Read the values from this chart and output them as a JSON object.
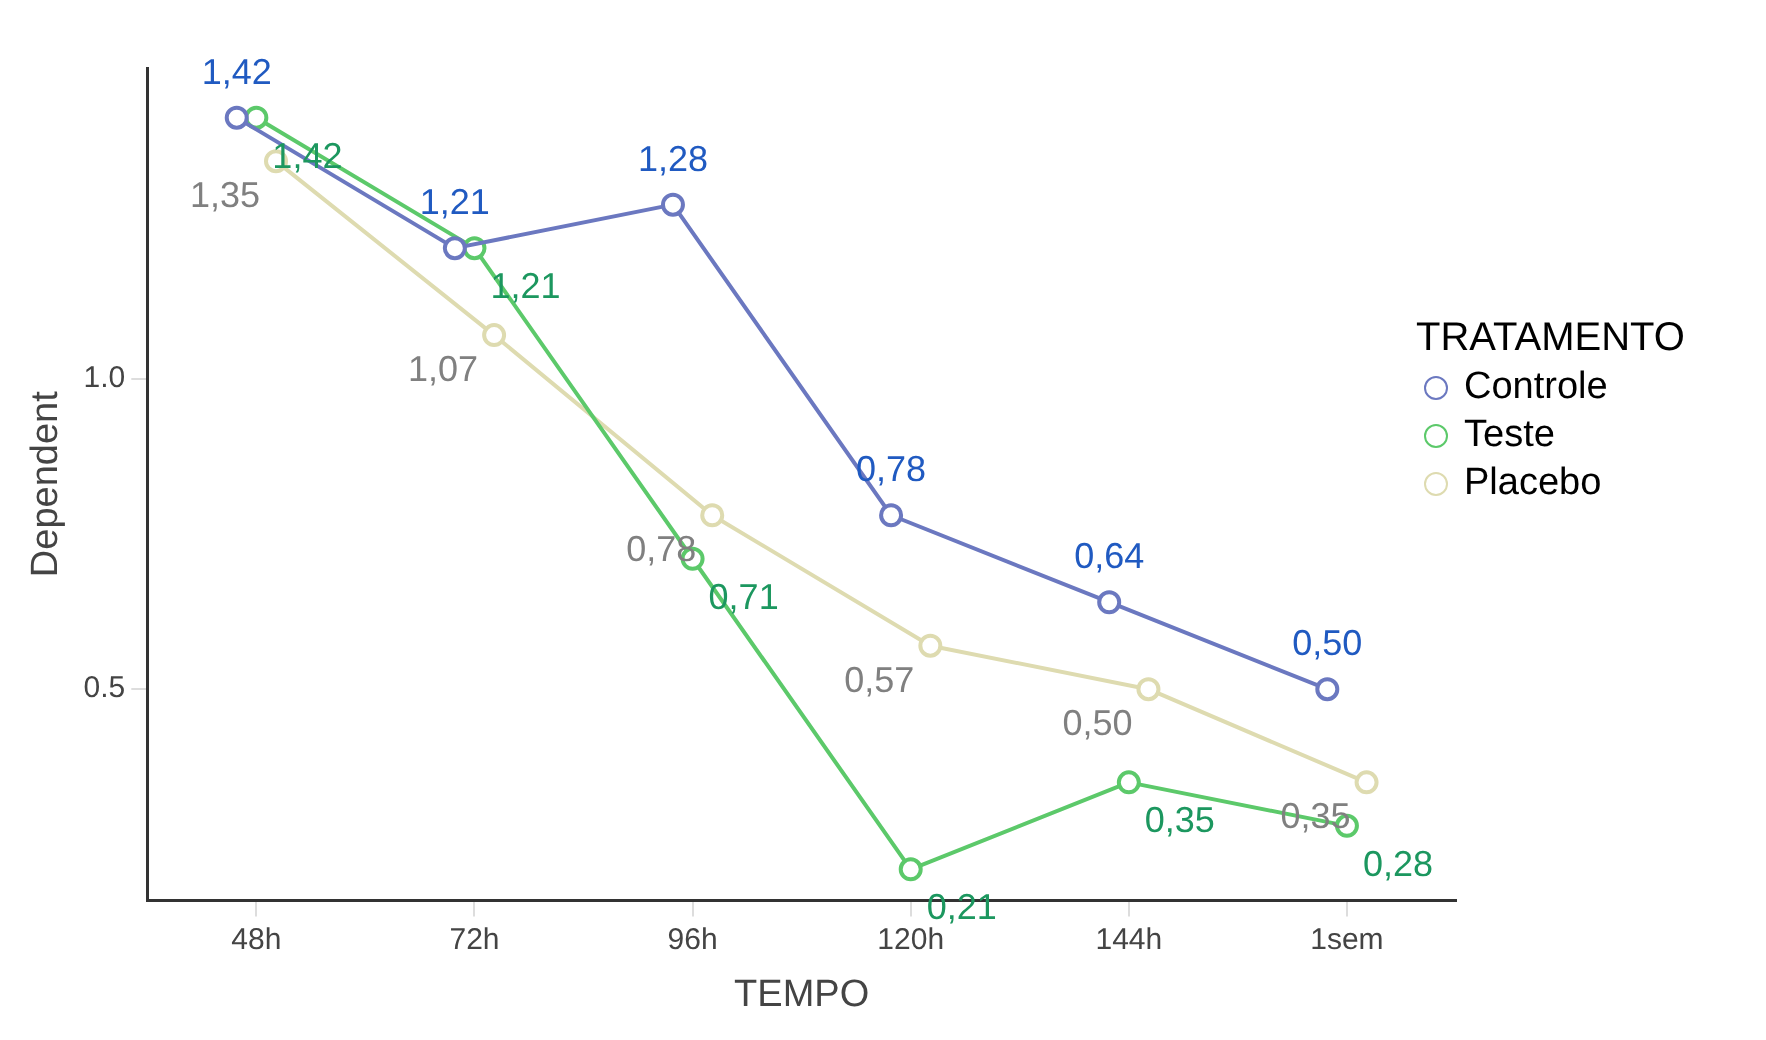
{
  "chart_data": {
    "type": "line",
    "xlabel": "TEMPO",
    "ylabel": "Dependent",
    "legend_title": "TRATAMENTO",
    "categories": [
      "48h",
      "72h",
      "96h",
      "120h",
      "144h",
      "1sem"
    ],
    "series": [
      {
        "name": "Controle",
        "color": "#6b78c0",
        "values": [
          1.42,
          1.21,
          1.28,
          0.78,
          0.64,
          0.5
        ],
        "value_labels": [
          "1,42",
          "1,21",
          "1,28",
          "0,78",
          "0,64",
          "0,50"
        ]
      },
      {
        "name": "Teste",
        "color": "#5cc96a",
        "values": [
          1.42,
          1.21,
          0.71,
          0.21,
          0.35,
          0.28
        ],
        "value_labels": [
          "1,42",
          "1,21",
          "0,71",
          "0,21",
          "0,35",
          "0,28"
        ]
      },
      {
        "name": "Placebo",
        "color": "#dedbb0",
        "values": [
          1.35,
          1.07,
          0.78,
          0.57,
          0.5,
          0.35
        ],
        "value_labels": [
          "1,35",
          "1,07",
          "0,78",
          "0,57",
          "0,50",
          "0,35"
        ]
      }
    ],
    "ylim": [
      0.16,
      1.5
    ],
    "yticks": [
      {
        "value": 0.5,
        "label": "0.5"
      },
      {
        "value": 1,
        "label": "1.0"
      }
    ],
    "grid": false,
    "legend": "right",
    "marker": "circle",
    "line_style": "solid"
  }
}
